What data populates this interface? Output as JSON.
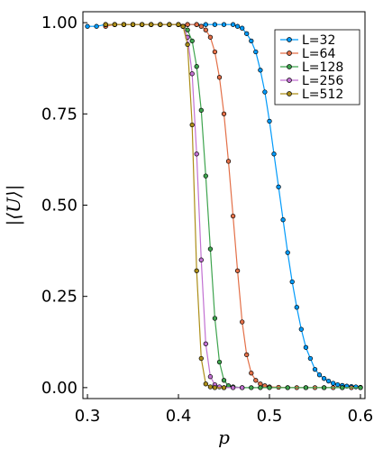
{
  "chart_data": {
    "type": "line",
    "xlabel": "p",
    "ylabel": "|⟨U⟩|",
    "xlim": [
      0.295,
      0.605
    ],
    "ylim": [
      -0.03,
      1.03
    ],
    "xticks": [
      "0.3",
      "0.4",
      "0.5",
      "0.6"
    ],
    "yticks": [
      "0.00",
      "0.25",
      "0.50",
      "0.75",
      "1.00"
    ],
    "grid": false,
    "legend_position": "top-right",
    "series": [
      {
        "name": "L=32",
        "color": "#009AFA",
        "x": [
          0.3,
          0.31,
          0.32,
          0.33,
          0.34,
          0.35,
          0.36,
          0.37,
          0.38,
          0.39,
          0.4,
          0.41,
          0.42,
          0.43,
          0.44,
          0.45,
          0.46,
          0.465,
          0.47,
          0.475,
          0.48,
          0.485,
          0.49,
          0.495,
          0.5,
          0.505,
          0.51,
          0.515,
          0.52,
          0.525,
          0.53,
          0.535,
          0.54,
          0.545,
          0.55,
          0.555,
          0.56,
          0.565,
          0.57,
          0.575,
          0.58,
          0.585,
          0.59,
          0.595,
          0.6
        ],
        "y": [
          0.99,
          0.99,
          0.995,
          0.995,
          0.995,
          0.995,
          0.995,
          0.995,
          0.995,
          0.995,
          0.995,
          0.995,
          0.995,
          0.995,
          0.995,
          0.995,
          0.995,
          0.99,
          0.985,
          0.97,
          0.95,
          0.92,
          0.87,
          0.81,
          0.73,
          0.64,
          0.55,
          0.46,
          0.37,
          0.29,
          0.22,
          0.16,
          0.11,
          0.08,
          0.05,
          0.035,
          0.025,
          0.018,
          0.012,
          0.008,
          0.006,
          0.004,
          0.003,
          0.002,
          0.001
        ]
      },
      {
        "name": "L=64",
        "color": "#E36F47",
        "x": [
          0.32,
          0.33,
          0.34,
          0.35,
          0.36,
          0.37,
          0.38,
          0.39,
          0.4,
          0.41,
          0.42,
          0.425,
          0.43,
          0.435,
          0.44,
          0.445,
          0.45,
          0.455,
          0.46,
          0.465,
          0.47,
          0.475,
          0.48,
          0.485,
          0.49,
          0.495,
          0.5,
          0.51,
          0.52,
          0.53,
          0.54,
          0.55,
          0.56,
          0.57,
          0.58,
          0.59,
          0.6
        ],
        "y": [
          0.99,
          0.995,
          0.995,
          0.995,
          0.995,
          0.995,
          0.995,
          0.995,
          0.995,
          0.995,
          0.995,
          0.99,
          0.98,
          0.96,
          0.92,
          0.85,
          0.75,
          0.62,
          0.47,
          0.32,
          0.18,
          0.09,
          0.04,
          0.02,
          0.01,
          0.005,
          0.002,
          0.001,
          0,
          0,
          0,
          0,
          0,
          0,
          0,
          0,
          0
        ]
      },
      {
        "name": "L=128",
        "color": "#3EA44E",
        "x": [
          0.32,
          0.33,
          0.34,
          0.35,
          0.36,
          0.37,
          0.38,
          0.39,
          0.4,
          0.405,
          0.41,
          0.415,
          0.42,
          0.425,
          0.43,
          0.435,
          0.44,
          0.445,
          0.45,
          0.455,
          0.46,
          0.47,
          0.48,
          0.49,
          0.5,
          0.52,
          0.54,
          0.56,
          0.58,
          0.6
        ],
        "y": [
          0.995,
          0.995,
          0.995,
          0.995,
          0.995,
          0.995,
          0.995,
          0.995,
          0.995,
          0.99,
          0.98,
          0.95,
          0.88,
          0.76,
          0.58,
          0.38,
          0.19,
          0.07,
          0.02,
          0.005,
          0.002,
          0,
          0,
          0,
          0,
          0,
          0,
          0,
          0,
          0
        ]
      },
      {
        "name": "L=256",
        "color": "#C271D2",
        "x": [
          0.32,
          0.33,
          0.34,
          0.35,
          0.36,
          0.37,
          0.38,
          0.39,
          0.4,
          0.405,
          0.41,
          0.415,
          0.42,
          0.425,
          0.43,
          0.435,
          0.44,
          0.445,
          0.45,
          0.46,
          0.47
        ],
        "y": [
          0.995,
          0.995,
          0.995,
          0.995,
          0.995,
          0.995,
          0.995,
          0.995,
          0.995,
          0.99,
          0.96,
          0.86,
          0.64,
          0.35,
          0.12,
          0.03,
          0.008,
          0.002,
          0,
          0,
          0
        ]
      },
      {
        "name": "L=512",
        "color": "#AC8E18",
        "x": [
          0.32,
          0.33,
          0.34,
          0.35,
          0.36,
          0.37,
          0.38,
          0.39,
          0.4,
          0.405,
          0.41,
          0.415,
          0.42,
          0.425,
          0.43,
          0.435,
          0.44,
          0.45
        ],
        "y": [
          0.995,
          0.995,
          0.995,
          0.995,
          0.995,
          0.995,
          0.995,
          0.995,
          0.995,
          0.99,
          0.94,
          0.72,
          0.32,
          0.08,
          0.01,
          0.002,
          0,
          0
        ]
      }
    ]
  }
}
